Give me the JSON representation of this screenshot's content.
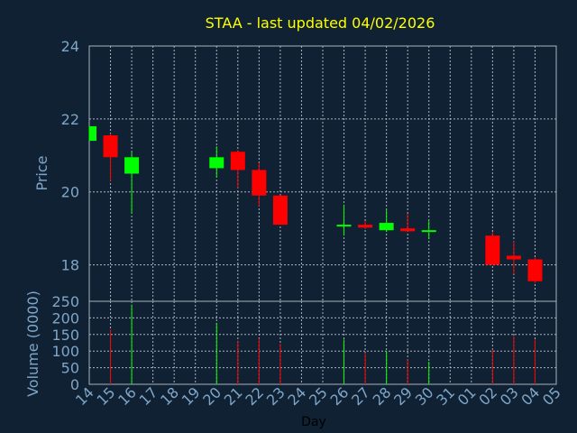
{
  "colors": {
    "background": "#0f2133",
    "title": "#ffff00",
    "axis_text": "#7fa6c8",
    "axis_line": "#aab4be",
    "grid": "#aab4be",
    "up": "#00ff00",
    "down": "#ff0000"
  },
  "chart_data": {
    "type": "candlestick",
    "title": "STAA - last updated 04/02/2026",
    "xlabel": "Day",
    "ylabel": "Price",
    "volume_label": "Volume (0000)",
    "ylim": [
      17,
      24
    ],
    "yticks": [
      18,
      20,
      22,
      24
    ],
    "volume_ylim": [
      0,
      250
    ],
    "volume_ticks": [
      0,
      50,
      100,
      150,
      200,
      250
    ],
    "grid": true,
    "x_tick_labels": [
      "14",
      "15",
      "16",
      "17",
      "18",
      "19",
      "20",
      "21",
      "22",
      "23",
      "24",
      "25",
      "26",
      "27",
      "28",
      "29",
      "30",
      "31",
      "01",
      "02",
      "03",
      "04",
      "05"
    ],
    "candles": [
      {
        "day": "14",
        "open": 21.4,
        "close": 21.8,
        "high": 21.8,
        "low": 21.4,
        "volume": 0
      },
      {
        "day": "15",
        "open": 21.55,
        "close": 20.95,
        "high": 21.6,
        "low": 20.3,
        "volume": 165
      },
      {
        "day": "16",
        "open": 20.5,
        "close": 20.95,
        "high": 21.1,
        "low": 19.4,
        "volume": 240
      },
      {
        "day": "20",
        "open": 20.65,
        "close": 20.95,
        "high": 21.25,
        "low": 20.4,
        "volume": 185
      },
      {
        "day": "21",
        "open": 21.1,
        "close": 20.6,
        "high": 21.15,
        "low": 20.1,
        "volume": 130
      },
      {
        "day": "22",
        "open": 20.6,
        "close": 19.9,
        "high": 20.8,
        "low": 19.6,
        "volume": 138
      },
      {
        "day": "23",
        "open": 19.9,
        "close": 19.1,
        "high": 19.9,
        "low": 19.1,
        "volume": 122
      },
      {
        "day": "26",
        "open": 19.08,
        "close": 19.1,
        "high": 19.65,
        "low": 18.8,
        "volume": 135
      },
      {
        "day": "27",
        "open": 19.1,
        "close": 19.02,
        "high": 19.2,
        "low": 18.98,
        "volume": 95
      },
      {
        "day": "28",
        "open": 18.95,
        "close": 19.15,
        "high": 19.5,
        "low": 18.9,
        "volume": 100
      },
      {
        "day": "29",
        "open": 19.0,
        "close": 18.92,
        "high": 19.4,
        "low": 18.9,
        "volume": 75
      },
      {
        "day": "30",
        "open": 18.93,
        "close": 18.95,
        "high": 19.2,
        "low": 18.7,
        "volume": 68
      },
      {
        "day": "02",
        "open": 18.8,
        "close": 18.0,
        "high": 18.9,
        "low": 18.0,
        "volume": 105
      },
      {
        "day": "03",
        "open": 18.25,
        "close": 18.15,
        "high": 18.65,
        "low": 17.75,
        "volume": 145
      },
      {
        "day": "04",
        "open": 18.15,
        "close": 17.55,
        "high": 18.2,
        "low": 17.5,
        "volume": 135
      }
    ]
  }
}
